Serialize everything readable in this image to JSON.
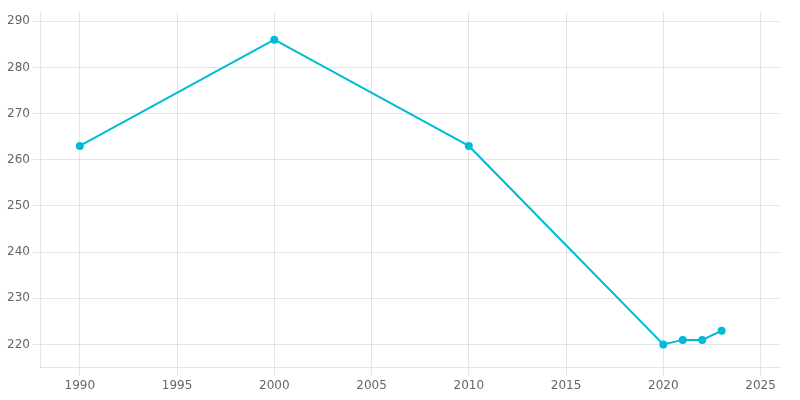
{
  "chart_data": {
    "type": "line",
    "x": [
      1990,
      2000,
      2010,
      2020,
      2021,
      2022,
      2023
    ],
    "values": [
      263,
      286,
      263,
      220,
      221,
      221,
      223
    ],
    "color": "#00bcd4",
    "marker": "circle",
    "xlim": [
      1988,
      2026
    ],
    "ylim": [
      215,
      292
    ],
    "xticks": [
      1990,
      1995,
      2000,
      2005,
      2010,
      2015,
      2020,
      2025
    ],
    "yticks": [
      220,
      230,
      240,
      250,
      260,
      270,
      280,
      290
    ],
    "grid": true
  }
}
